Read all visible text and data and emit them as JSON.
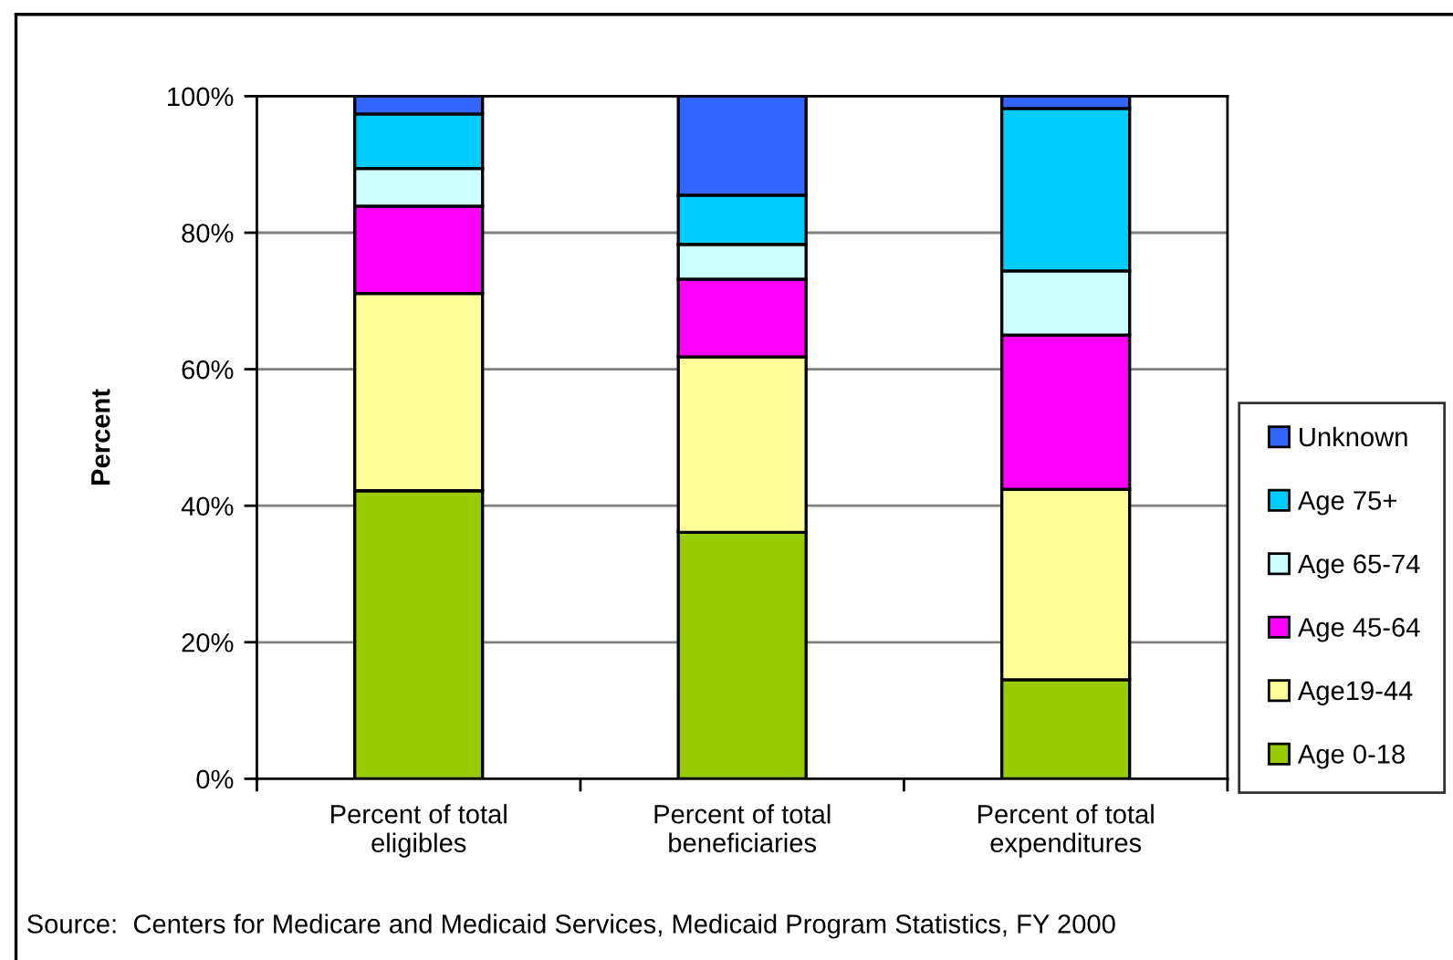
{
  "chart_data": {
    "type": "bar",
    "stacked": true,
    "categories": [
      "Percent of total\neligibles",
      "Percent of total\nbeneficiaries",
      "Percent of total\nexpenditures"
    ],
    "series": [
      {
        "name": "Age 0-18",
        "color": "#99cc00",
        "values": [
          42.2,
          36.1,
          14.5
        ]
      },
      {
        "name": "Age19-44",
        "color": "#ffff99",
        "values": [
          28.9,
          25.7,
          27.9
        ]
      },
      {
        "name": "Age 45-64",
        "color": "#ff00ff",
        "values": [
          12.8,
          11.4,
          22.6
        ]
      },
      {
        "name": "Age 65-74",
        "color": "#ccffff",
        "values": [
          5.5,
          5.1,
          9.4
        ]
      },
      {
        "name": "Age 75+",
        "color": "#00ccff",
        "values": [
          8.0,
          7.2,
          23.8
        ]
      },
      {
        "name": "Unknown",
        "color": "#3366ff",
        "values": [
          2.6,
          14.5,
          1.8
        ]
      }
    ],
    "ylabel": "Percent",
    "ylim": [
      0,
      100
    ],
    "yticks": [
      {
        "value": 0,
        "label": "0%"
      },
      {
        "value": 20,
        "label": "20%"
      },
      {
        "value": 40,
        "label": "40%"
      },
      {
        "value": 60,
        "label": "60%"
      },
      {
        "value": 80,
        "label": "80%"
      },
      {
        "value": 100,
        "label": "100%"
      }
    ],
    "grid": "y",
    "legend": "right",
    "annotations": [
      "Source:  Centers for Medicare and Medicaid Services, Medicaid Program Statistics, FY 2000"
    ]
  }
}
